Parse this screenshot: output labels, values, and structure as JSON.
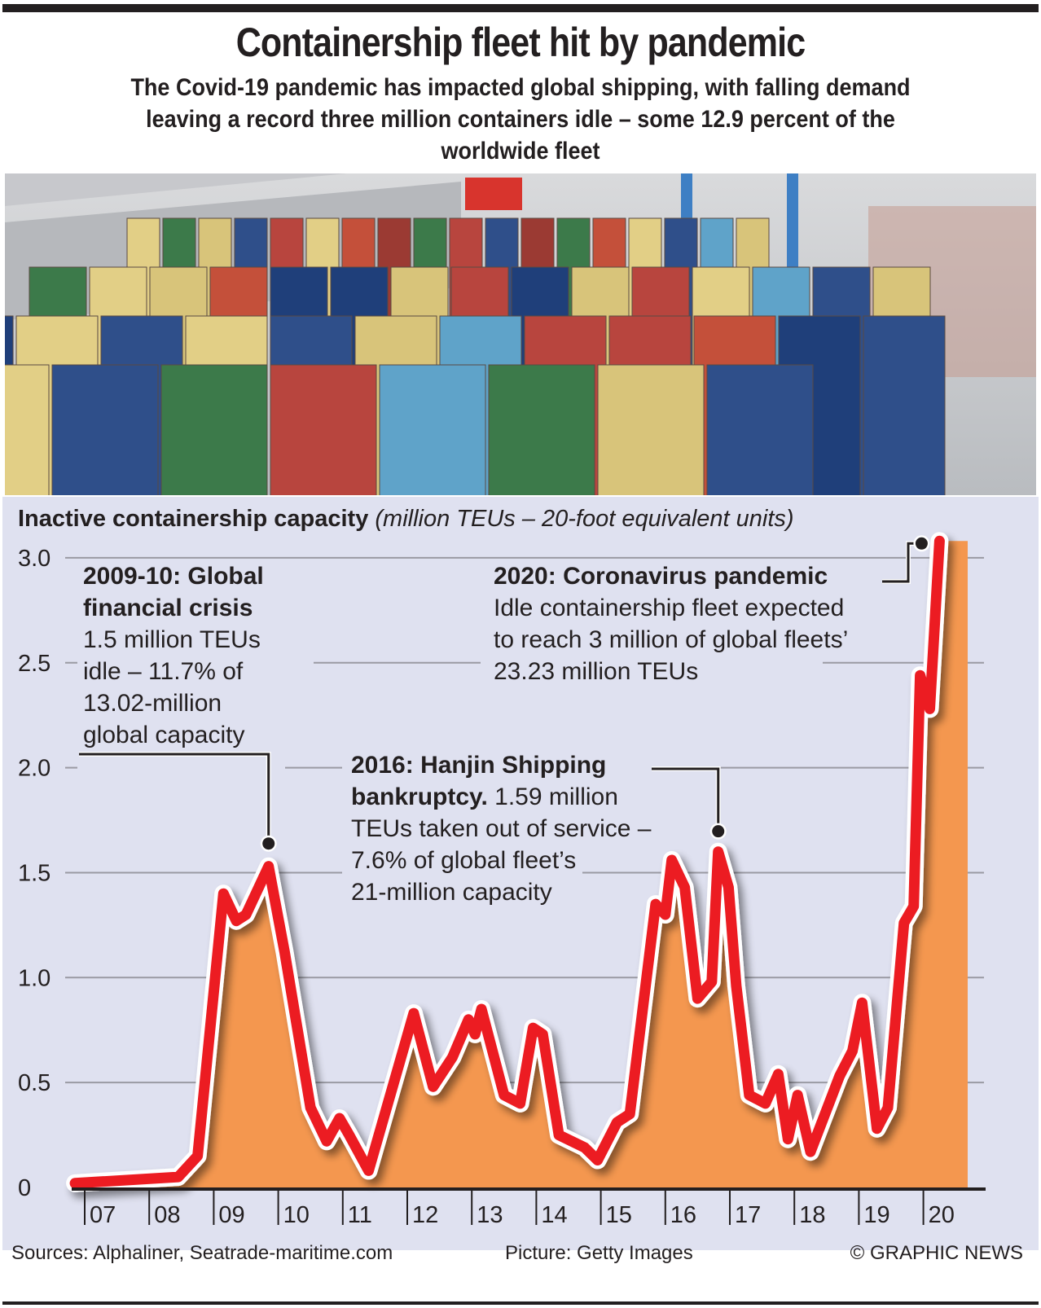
{
  "header": {
    "title": "Containership fleet hit by pandemic",
    "subtitle": "The Covid-19 pandemic has impacted global shipping, with falling demand leaving a record three million containers idle – some 12.9 percent of the worldwide fleet"
  },
  "photo": {
    "description": "Stacked shipping containers aboard a containership at a port terminal"
  },
  "chart_heading": {
    "bold": "Inactive containership capacity",
    "italic": "(million TEUs – 20-foot equivalent units)"
  },
  "annotations": {
    "crisis": {
      "title_line1": "2009-10: Global",
      "title_line2": "financial crisis",
      "body_lines": [
        "1.5 million TEUs",
        "idle – 11.7% of",
        "13.02-million",
        "global capacity"
      ]
    },
    "hanjin": {
      "title_line1": "2016: Hanjin Shipping",
      "title_line2_bold": "bankruptcy.",
      "title_line2_rest": " 1.59 million",
      "body_lines": [
        "TEUs taken out of service –",
        "7.6% of global fleet’s",
        "21-million capacity"
      ]
    },
    "pandemic": {
      "title": "2020: Coronavirus pandemic",
      "body_lines": [
        "Idle containership fleet expected",
        "to reach 3 million of global fleets’",
        "23.23 million TEUs"
      ]
    }
  },
  "colors": {
    "panel_bg": "#dfe1f0",
    "area_fill": "#f4974f",
    "line_red": "#ec1c24",
    "line_outline": "#ffffff",
    "grid": "#9a9aa3",
    "text": "#231f20"
  },
  "chart_data": {
    "type": "area",
    "title": "Inactive containership capacity",
    "ylabel": "million TEUs – 20-foot equivalent units",
    "xlabel": "",
    "ylim": [
      0,
      3.0
    ],
    "yticks": [
      0,
      0.5,
      1.0,
      1.5,
      2.0,
      2.5,
      3.0
    ],
    "ytick_labels": [
      "0",
      "0.5",
      "1.0",
      "1.5",
      "2.0",
      "2.5",
      "3.0"
    ],
    "xlim": [
      2007,
      2020.7
    ],
    "xticks": [
      2007,
      2008,
      2009,
      2010,
      2011,
      2012,
      2013,
      2014,
      2015,
      2016,
      2017,
      2018,
      2019,
      2020
    ],
    "xtick_labels": [
      "07",
      "08",
      "09",
      "10",
      "11",
      "12",
      "13",
      "14",
      "15",
      "16",
      "17",
      "18",
      "19",
      "20"
    ],
    "grid": true,
    "legend": "none",
    "series": [
      {
        "name": "Inactive capacity",
        "x": [
          2006.85,
          2008.45,
          2008.75,
          2009.15,
          2009.35,
          2009.5,
          2009.85,
          2010.1,
          2010.5,
          2010.75,
          2010.95,
          2011.1,
          2011.4,
          2012.1,
          2012.4,
          2012.7,
          2012.95,
          2013.05,
          2013.15,
          2013.5,
          2013.75,
          2013.95,
          2014.1,
          2014.35,
          2014.75,
          2014.95,
          2015.25,
          2015.45,
          2015.85,
          2016.0,
          2016.1,
          2016.3,
          2016.5,
          2016.72,
          2016.82,
          2016.98,
          2017.1,
          2017.3,
          2017.55,
          2017.75,
          2017.9,
          2018.05,
          2018.25,
          2018.7,
          2018.9,
          2019.05,
          2019.28,
          2019.45,
          2019.7,
          2019.85,
          2019.95,
          2020.1,
          2020.25
        ],
        "values": [
          0.02,
          0.05,
          0.15,
          1.4,
          1.27,
          1.3,
          1.53,
          1.12,
          0.38,
          0.22,
          0.33,
          0.25,
          0.08,
          0.83,
          0.48,
          0.62,
          0.8,
          0.73,
          0.85,
          0.44,
          0.4,
          0.76,
          0.73,
          0.25,
          0.19,
          0.13,
          0.31,
          0.35,
          1.35,
          1.3,
          1.56,
          1.43,
          0.9,
          0.98,
          1.6,
          1.43,
          0.96,
          0.44,
          0.4,
          0.54,
          0.23,
          0.44,
          0.17,
          0.53,
          0.65,
          0.88,
          0.28,
          0.38,
          1.26,
          1.34,
          2.44,
          2.28,
          3.08
        ]
      }
    ],
    "annotations": [
      {
        "x": 2009.85,
        "y": 1.53,
        "label": "2009-10: Global financial crisis"
      },
      {
        "x": 2016.82,
        "y": 1.6,
        "label": "2016: Hanjin Shipping bankruptcy"
      },
      {
        "x": 2020.25,
        "y": 3.08,
        "label": "2020: Coronavirus pandemic"
      }
    ]
  },
  "footer": {
    "sources": "Sources: Alphaliner, Seatrade-maritime.com",
    "picture": "Picture: Getty Images",
    "credit": "© GRAPHIC NEWS"
  }
}
